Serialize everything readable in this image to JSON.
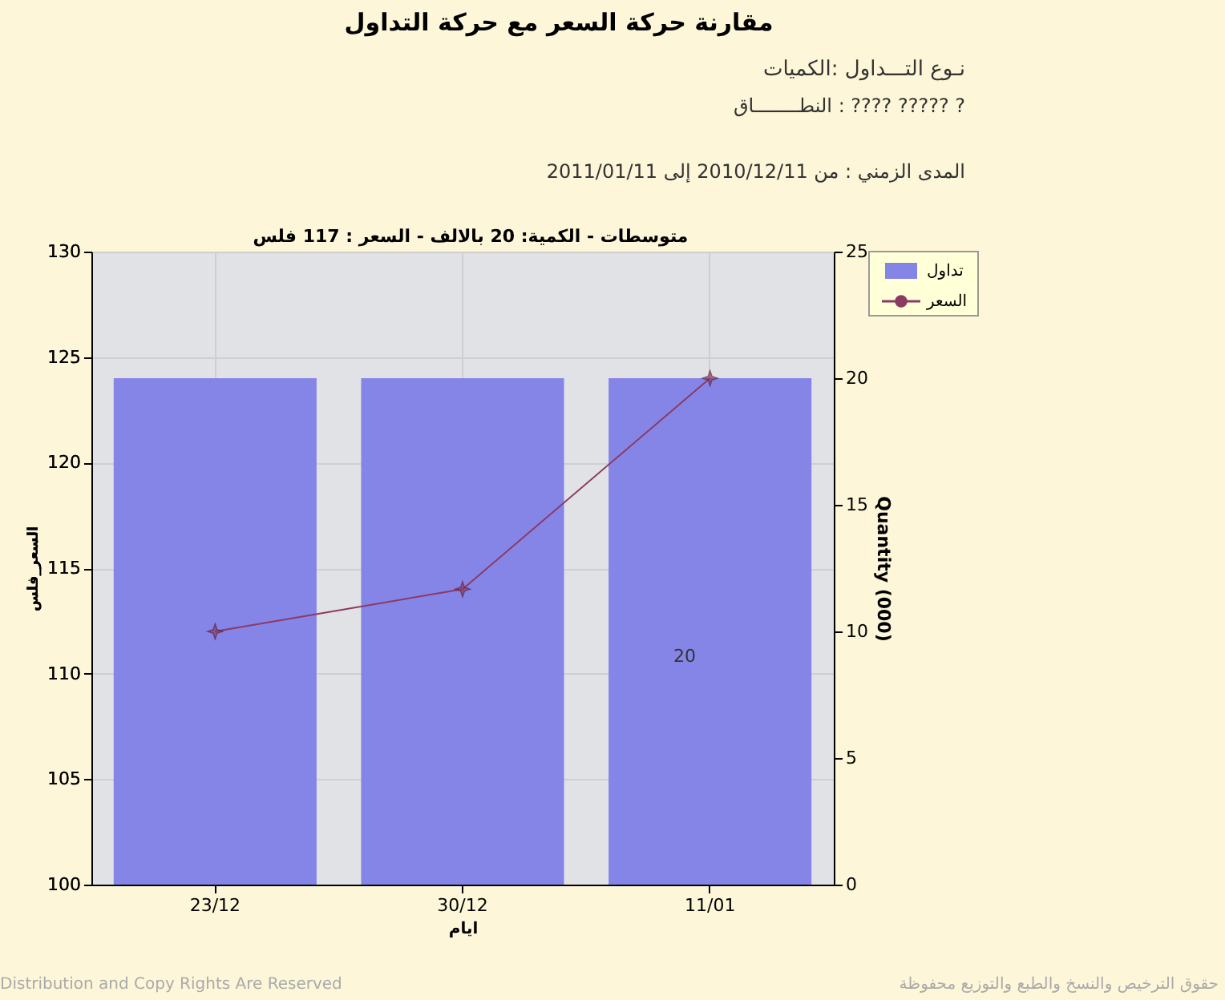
{
  "chart_data": {
    "type": "bar",
    "title": "مقارنة حركة السعر مع حركة التداول",
    "xlabel": "ايام",
    "ylabel": "السعر_فلس",
    "y2label": "Quantity (000)",
    "categories": [
      "23/12",
      "30/12",
      "11/01"
    ],
    "series": [
      {
        "name": "تداول",
        "axis": "y2",
        "color": "#8585e8",
        "values": [
          20,
          20,
          20
        ]
      },
      {
        "name": "السعر",
        "type": "line",
        "color": "#8b3a62",
        "values": [
          112,
          114,
          124
        ]
      }
    ],
    "ylim": [
      100,
      130
    ],
    "yticks": [
      100,
      105,
      110,
      115,
      120,
      125,
      130
    ],
    "y2lim": [
      0,
      25
    ],
    "y2ticks": [
      0,
      5,
      10,
      15,
      20,
      25
    ],
    "grid": true,
    "legend": "top right",
    "marker": "star",
    "annotations": [
      "نـوع التـــداول :الكميات",
      "النطــــــــاق : ????     ????? ?",
      "المدى الزمني :   من 2010/12/11 إلى 2011/01/11",
      "متوسطات - الكمية: 20 بالالف  - السعر : 117 فلس",
      "20",
      "Distribution and Copy Rights Are Reserved",
      "حقوق الترخيص والنسخ والطبع والتوزيع محفوظة"
    ]
  }
}
